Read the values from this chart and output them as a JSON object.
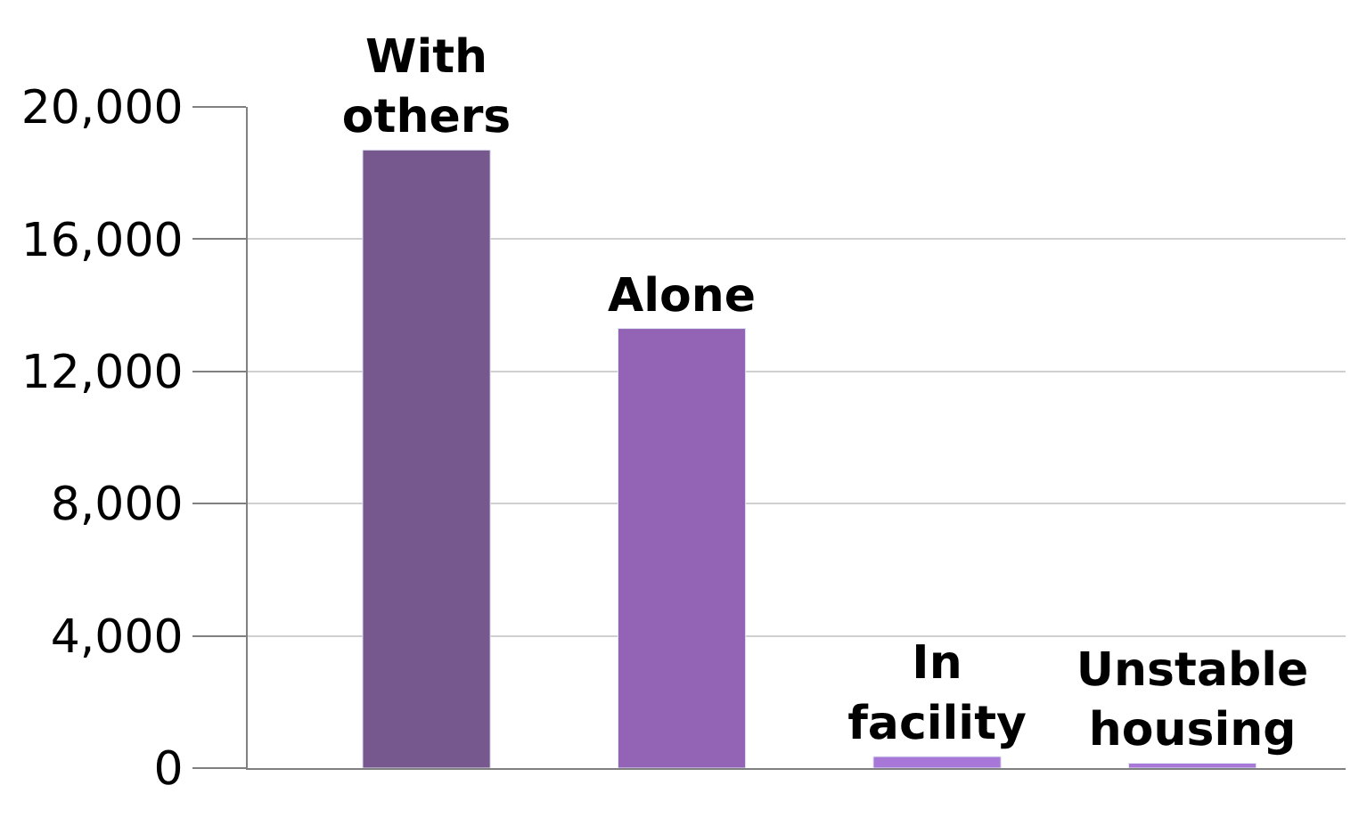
{
  "chart_data": {
    "type": "bar",
    "categories": [
      "With others",
      "Alone",
      "In facility",
      "Unstable housing"
    ],
    "values": [
      18700,
      13300,
      350,
      150
    ],
    "colors": [
      "#77588e",
      "#9363b5",
      "#a878d8",
      "#a878d8"
    ],
    "ylim": [
      0,
      20000
    ],
    "yticks": [
      {
        "value": 0,
        "label": "0"
      },
      {
        "value": 4000,
        "label": "4,000"
      },
      {
        "value": 8000,
        "label": "8,000"
      },
      {
        "value": 12000,
        "label": "12,000"
      },
      {
        "value": 16000,
        "label": "16,000"
      },
      {
        "value": 20000,
        "label": "20,000"
      }
    ],
    "grid": "y",
    "tick_labels": "y"
  }
}
